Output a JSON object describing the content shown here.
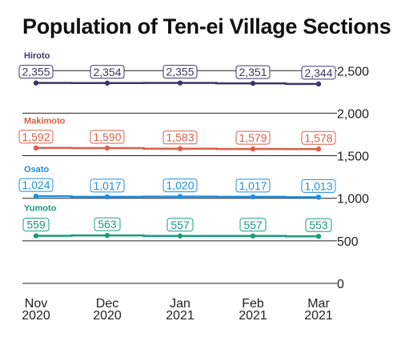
{
  "chart_data": {
    "type": "line",
    "title": "Population of Ten-ei Village Sections",
    "xlabel": "",
    "ylabel": "",
    "categories": [
      "Nov\n2020",
      "Dec\n2020",
      "Jan\n2021",
      "Feb\n2021",
      "Mar\n2021"
    ],
    "ylim": [
      0,
      2500
    ],
    "yticks": [
      0,
      500,
      1000,
      1500,
      2000,
      2500
    ],
    "ytick_labels": [
      "0",
      "500",
      "1,000",
      "1,500",
      "2,000",
      "2,500"
    ],
    "grid": true,
    "series": [
      {
        "name": "Hiroto",
        "color": "#3d3468",
        "values": [
          2355,
          2354,
          2355,
          2351,
          2344
        ],
        "labels": [
          "2,355",
          "2,354",
          "2,355",
          "2,351",
          "2,344"
        ]
      },
      {
        "name": "Makimoto",
        "color": "#d9604a",
        "values": [
          1592,
          1590,
          1583,
          1579,
          1578
        ],
        "labels": [
          "1,592",
          "1,590",
          "1,583",
          "1,579",
          "1,578"
        ]
      },
      {
        "name": "Osato",
        "color": "#1d8fe0",
        "values": [
          1024,
          1017,
          1020,
          1017,
          1013
        ],
        "labels": [
          "1,024",
          "1,017",
          "1,020",
          "1,017",
          "1,013"
        ]
      },
      {
        "name": "Yumoto",
        "color": "#1a9a80",
        "values": [
          559,
          563,
          557,
          557,
          553
        ],
        "labels": [
          "559",
          "563",
          "557",
          "557",
          "553"
        ]
      }
    ]
  }
}
